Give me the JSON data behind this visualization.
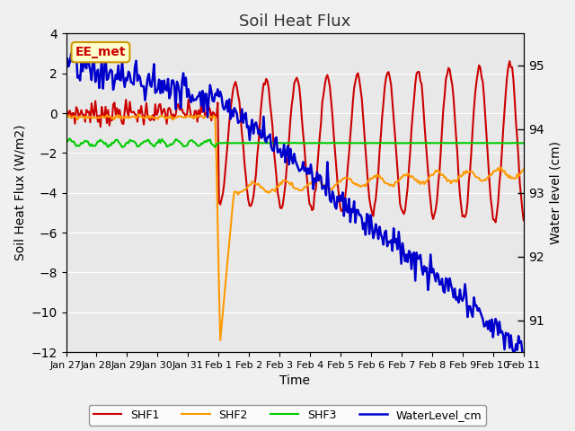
{
  "title": "Soil Heat Flux",
  "ylabel_left": "Soil Heat Flux (W/m2)",
  "ylabel_right": "Water level (cm)",
  "xlabel": "Time",
  "ylim_left": [
    -12,
    4
  ],
  "ylim_right": [
    90.5,
    95.5
  ],
  "yticks_left": [
    -12,
    -10,
    -8,
    -6,
    -4,
    -2,
    0,
    2,
    4
  ],
  "colors": {
    "SHF1": "#cc0000",
    "SHF2": "#ff9900",
    "SHF3": "#00cc00",
    "WaterLevel_cm": "#0000cc",
    "fig_bg": "#f0f0f0",
    "ax_bg": "#e8e8e8",
    "grid": "#ffffff",
    "annotation_bg": "#ffffcc",
    "annotation_border": "#cc9900",
    "annotation_text": "#cc0000"
  },
  "x_tick_positions": [
    0,
    1,
    2,
    3,
    4,
    5,
    6,
    7,
    8,
    9,
    10,
    11,
    12,
    13,
    14,
    15
  ],
  "x_tick_labels": [
    "Jan 27",
    "Jan 28",
    "Jan 29",
    "Jan 30",
    "Jan 31",
    "Feb 1",
    "Feb 2",
    "Feb 3",
    "Feb 4",
    "Feb 5",
    "Feb 6",
    "Feb 7",
    "Feb 8",
    "Feb 9",
    "Feb 10",
    "Feb 11"
  ],
  "annotation_text": "EE_met",
  "line_widths": {
    "SHF1": 1.5,
    "SHF2": 1.5,
    "SHF3": 1.5,
    "WaterLevel_cm": 1.8
  },
  "n_days": 15,
  "n_hours": 360,
  "day_feb1": 5,
  "day_feb11": 15
}
